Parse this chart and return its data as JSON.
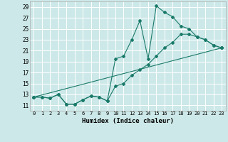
{
  "xlabel": "Humidex (Indice chaleur)",
  "bg_color": "#cde8e8",
  "grid_color": "#ffffff",
  "line_color": "#1a7a6a",
  "xlim": [
    -0.5,
    23.5
  ],
  "ylim": [
    10.0,
    30.0
  ],
  "yticks": [
    11,
    13,
    15,
    17,
    19,
    21,
    23,
    25,
    27,
    29
  ],
  "xticks": [
    0,
    1,
    2,
    3,
    4,
    5,
    6,
    7,
    8,
    9,
    10,
    11,
    12,
    13,
    14,
    15,
    16,
    17,
    18,
    19,
    20,
    21,
    22,
    23
  ],
  "line1_x": [
    0,
    1,
    2,
    3,
    4,
    5,
    6,
    7,
    8,
    9,
    10,
    11,
    12,
    13,
    14,
    15,
    16,
    17,
    18,
    19,
    20,
    21,
    22,
    23
  ],
  "line1_y": [
    12.5,
    12.5,
    12.3,
    13.0,
    11.2,
    11.2,
    12.0,
    12.7,
    12.5,
    11.8,
    19.5,
    20.0,
    23.0,
    26.5,
    19.5,
    29.2,
    28.0,
    27.2,
    25.5,
    25.0,
    23.5,
    23.0,
    22.0,
    21.5
  ],
  "line2_x": [
    0,
    1,
    2,
    3,
    4,
    5,
    6,
    7,
    8,
    9,
    10,
    11,
    12,
    13,
    14,
    15,
    16,
    17,
    18,
    19,
    20,
    21,
    22,
    23
  ],
  "line2_y": [
    12.5,
    12.5,
    12.3,
    13.0,
    11.2,
    11.2,
    12.0,
    12.7,
    12.5,
    11.8,
    14.5,
    15.0,
    16.5,
    17.5,
    18.5,
    20.0,
    21.5,
    22.5,
    24.0,
    24.0,
    23.5,
    23.0,
    22.0,
    21.5
  ],
  "line3_x": [
    0,
    23
  ],
  "line3_y": [
    12.5,
    21.5
  ]
}
